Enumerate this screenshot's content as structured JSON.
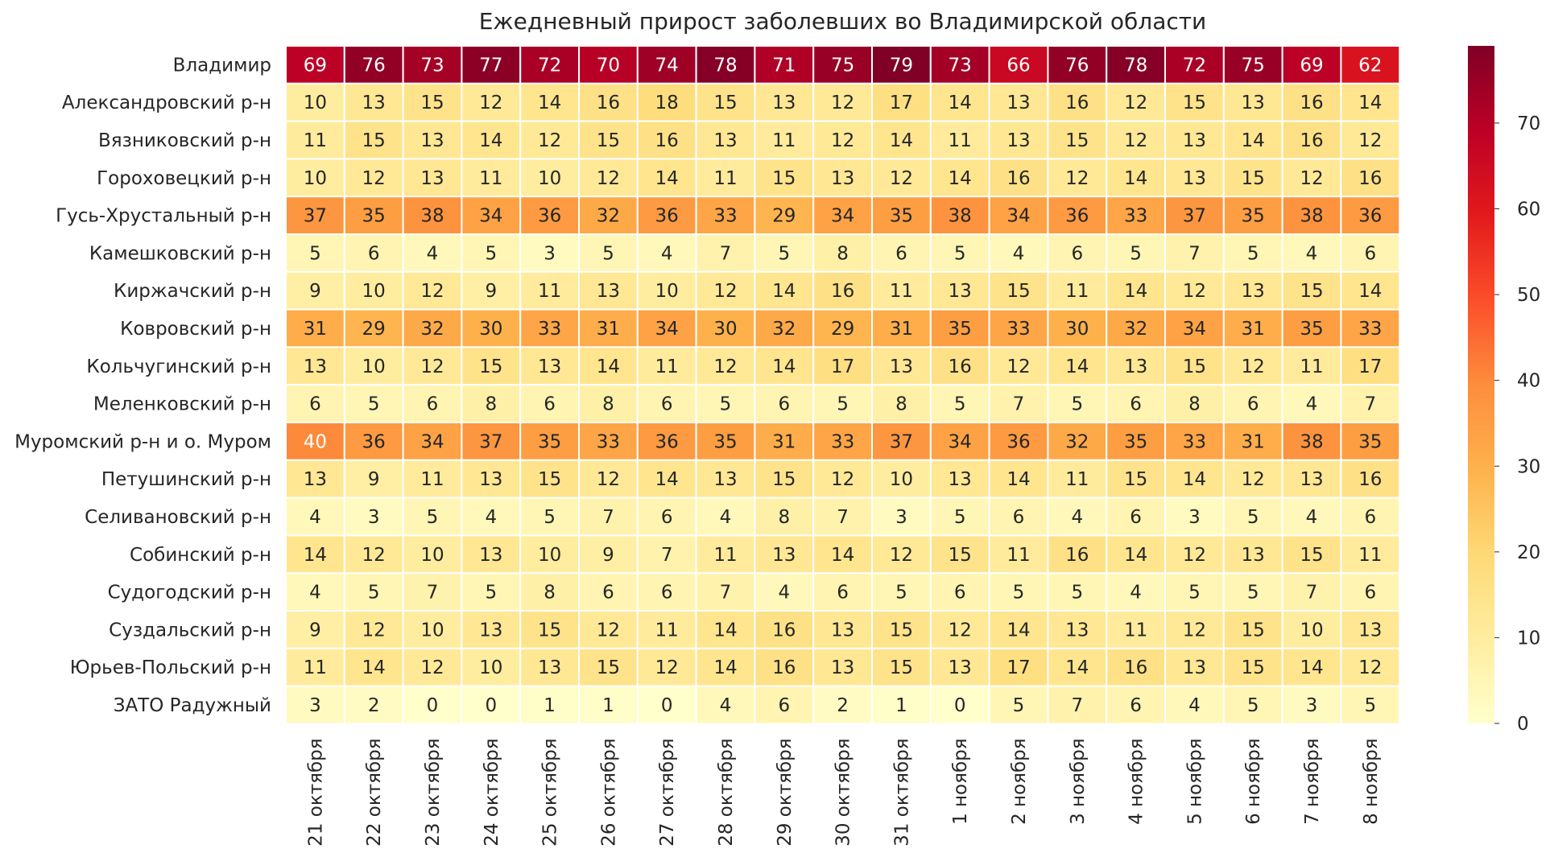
{
  "chart_data": {
    "type": "heatmap",
    "title": "Ежедневный прирост заболевших во Владимирской области",
    "rows": [
      "Владимир",
      "Александровский р-н",
      "Вязниковский р-н",
      "Гороховецкий р-н",
      "Гусь-Хрустальный р-н",
      "Камешковский р-н",
      "Киржачский р-н",
      "Ковровский р-н",
      "Кольчугинский р-н",
      "Меленковский р-н",
      "Муромский р-н и о. Муром",
      "Петушинский р-н",
      "Селивановский р-н",
      "Собинский р-н",
      "Судогодский р-н",
      "Суздальский р-н",
      "Юрьев-Польский р-н",
      "ЗАТО Радужный"
    ],
    "columns": [
      "21 октября",
      "22 октября",
      "23 октября",
      "24 октября",
      "25 октября",
      "26 октября",
      "27 октября",
      "28 октября",
      "29 октября",
      "30 октября",
      "31 октября",
      "1 ноября",
      "2 ноября",
      "3 ноября",
      "4 ноября",
      "5 ноября",
      "6 ноября",
      "7 ноября",
      "8 ноября"
    ],
    "values": [
      [
        69,
        76,
        73,
        77,
        72,
        70,
        74,
        78,
        71,
        75,
        79,
        73,
        66,
        76,
        78,
        72,
        75,
        69,
        62
      ],
      [
        10,
        13,
        15,
        12,
        14,
        16,
        18,
        15,
        13,
        12,
        17,
        14,
        13,
        16,
        12,
        15,
        13,
        16,
        14
      ],
      [
        11,
        15,
        13,
        14,
        12,
        15,
        16,
        13,
        11,
        12,
        14,
        11,
        13,
        15,
        12,
        13,
        14,
        16,
        12
      ],
      [
        10,
        12,
        13,
        11,
        10,
        12,
        14,
        11,
        15,
        13,
        12,
        14,
        16,
        12,
        14,
        13,
        15,
        12,
        16
      ],
      [
        37,
        35,
        38,
        34,
        36,
        32,
        36,
        33,
        29,
        34,
        35,
        38,
        34,
        36,
        33,
        37,
        35,
        38,
        36
      ],
      [
        5,
        6,
        4,
        5,
        3,
        5,
        4,
        7,
        5,
        8,
        6,
        5,
        4,
        6,
        5,
        7,
        5,
        4,
        6
      ],
      [
        9,
        10,
        12,
        9,
        11,
        13,
        10,
        12,
        14,
        16,
        11,
        13,
        15,
        11,
        14,
        12,
        13,
        15,
        14
      ],
      [
        31,
        29,
        32,
        30,
        33,
        31,
        34,
        30,
        32,
        29,
        31,
        35,
        33,
        30,
        32,
        34,
        31,
        35,
        33
      ],
      [
        13,
        10,
        12,
        15,
        13,
        14,
        11,
        12,
        14,
        17,
        13,
        16,
        12,
        14,
        13,
        15,
        12,
        11,
        17
      ],
      [
        6,
        5,
        6,
        8,
        6,
        8,
        6,
        5,
        6,
        5,
        8,
        5,
        7,
        5,
        6,
        8,
        6,
        4,
        7
      ],
      [
        40,
        36,
        34,
        37,
        35,
        33,
        36,
        35,
        31,
        33,
        37,
        34,
        36,
        32,
        35,
        33,
        31,
        38,
        35
      ],
      [
        13,
        9,
        11,
        13,
        15,
        12,
        14,
        13,
        15,
        12,
        10,
        13,
        14,
        11,
        15,
        14,
        12,
        13,
        16
      ],
      [
        4,
        3,
        5,
        4,
        5,
        7,
        6,
        4,
        8,
        7,
        3,
        5,
        6,
        4,
        6,
        3,
        5,
        4,
        6
      ],
      [
        14,
        12,
        10,
        13,
        10,
        9,
        7,
        11,
        13,
        14,
        12,
        15,
        11,
        16,
        14,
        12,
        13,
        15,
        11
      ],
      [
        4,
        5,
        7,
        5,
        8,
        6,
        6,
        7,
        4,
        6,
        5,
        6,
        5,
        5,
        4,
        5,
        5,
        7,
        6
      ],
      [
        9,
        12,
        10,
        13,
        15,
        12,
        11,
        14,
        16,
        13,
        15,
        12,
        14,
        13,
        11,
        12,
        15,
        10,
        13
      ],
      [
        11,
        14,
        12,
        10,
        13,
        15,
        12,
        14,
        16,
        13,
        15,
        13,
        17,
        14,
        16,
        13,
        15,
        14,
        12
      ],
      [
        3,
        2,
        0,
        0,
        1,
        1,
        0,
        4,
        6,
        2,
        1,
        0,
        5,
        7,
        6,
        4,
        5,
        3,
        5
      ]
    ],
    "colorscale": {
      "name": "YlOrRd",
      "min": 0,
      "max": 79,
      "ticks": [
        0,
        10,
        20,
        30,
        40,
        50,
        60,
        70
      ]
    },
    "colors": {
      "cell_border": "#ffffff",
      "text_dark": "#262626",
      "text_light": "#ffffff"
    },
    "watermark": "covid_vladimir"
  }
}
